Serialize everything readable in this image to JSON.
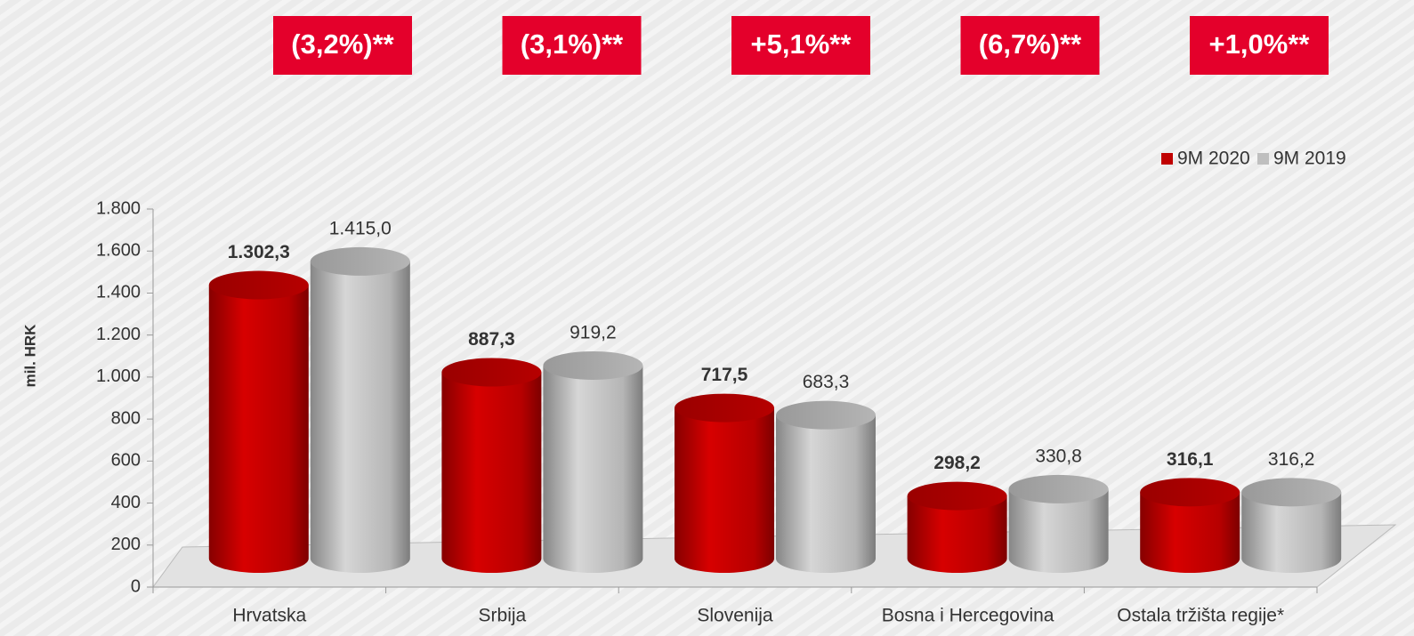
{
  "chart_data": {
    "type": "bar",
    "ylabel": "mil. HRK",
    "annotations": [
      "(3,2%)**",
      "(3,1%)**",
      "+5,1%**",
      "(6,7%)**",
      "+1,0%**"
    ],
    "categories": [
      "Hrvatska",
      "Srbija",
      "Slovenija",
      "Bosna i Hercegovina",
      "Ostala tržišta regije*"
    ],
    "series": [
      {
        "name": "9M 2020",
        "color": "#c00000",
        "values": [
          1302.3,
          887.3,
          717.5,
          298.2,
          316.1
        ],
        "value_labels": [
          "1.302,3",
          "887,3",
          "717,5",
          "298,2",
          "316,1"
        ]
      },
      {
        "name": "9M 2019",
        "color": "#bfbfbf",
        "values": [
          1415.0,
          919.2,
          683.3,
          330.8,
          316.2
        ],
        "value_labels": [
          "1.415,0",
          "919,2",
          "683,3",
          "330,8",
          "316,2"
        ]
      }
    ],
    "ylim": [
      0,
      1800
    ],
    "yticks": [
      0,
      200,
      400,
      600,
      800,
      {
        "value": 1000,
        "label": "1.000"
      },
      {
        "value": 1200,
        "label": "1.200"
      },
      {
        "value": 1400,
        "label": "1.400"
      },
      {
        "value": 1600,
        "label": "1.600"
      },
      {
        "value": 1800,
        "label": "1.800"
      }
    ],
    "legend": "top-right"
  }
}
